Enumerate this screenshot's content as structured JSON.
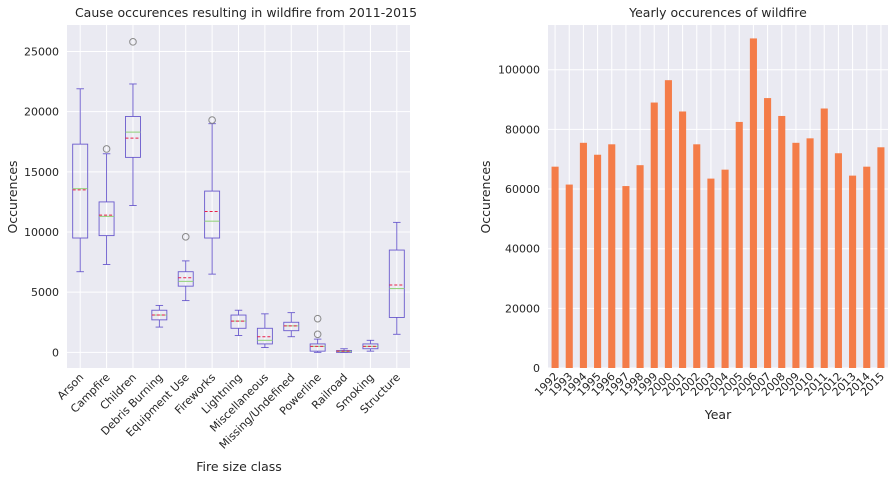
{
  "colors": {
    "plot_bg": "#eaeaf2",
    "grid": "#ffffff",
    "box_edge": "#6a5acd",
    "median": "#8fd175",
    "mean": "#e8204a",
    "bar": "#f47c48",
    "text": "#262626"
  },
  "chart_data": [
    {
      "type": "box",
      "title": "Cause occurences resulting in wildfire from 2011-2015",
      "xlabel": "Fire size class",
      "ylabel": "Occurences",
      "ylim": [
        -1300,
        27200
      ],
      "yticks": [
        0,
        5000,
        10000,
        15000,
        20000,
        25000
      ],
      "ytick_labels": [
        "0",
        "5000",
        "10000",
        "15000",
        "20000",
        "25000"
      ],
      "grid": true,
      "categories": [
        "Arson",
        "Campfire",
        "Children",
        "Debris Burning",
        "Equipment Use",
        "Fireworks",
        "Lightning",
        "Miscellaneous",
        "Missing/Undefined",
        "Powerline",
        "Railroad",
        "Smoking",
        "Structure"
      ],
      "boxes": [
        {
          "whislo": 6700,
          "q1": 9500,
          "med": 13600,
          "mean": 13500,
          "q3": 17300,
          "whishi": 21900,
          "fliers": []
        },
        {
          "whislo": 7300,
          "q1": 9700,
          "med": 11300,
          "mean": 11400,
          "q3": 12500,
          "whishi": 16500,
          "fliers": [
            16900
          ]
        },
        {
          "whislo": 12200,
          "q1": 16200,
          "med": 18300,
          "mean": 17800,
          "q3": 19600,
          "whishi": 22300,
          "fliers": [
            25800
          ]
        },
        {
          "whislo": 2100,
          "q1": 2700,
          "med": 3100,
          "mean": 3100,
          "q3": 3500,
          "whishi": 3900,
          "fliers": []
        },
        {
          "whislo": 4300,
          "q1": 5500,
          "med": 5900,
          "mean": 6200,
          "q3": 6700,
          "whishi": 7600,
          "fliers": [
            9600
          ]
        },
        {
          "whislo": 6500,
          "q1": 9500,
          "med": 10900,
          "mean": 11700,
          "q3": 13400,
          "whishi": 19000,
          "fliers": [
            19300
          ]
        },
        {
          "whislo": 1400,
          "q1": 2000,
          "med": 2600,
          "mean": 2600,
          "q3": 3100,
          "whishi": 3500,
          "fliers": []
        },
        {
          "whislo": 400,
          "q1": 700,
          "med": 1000,
          "mean": 1300,
          "q3": 2000,
          "whishi": 3200,
          "fliers": []
        },
        {
          "whislo": 1300,
          "q1": 1800,
          "med": 2200,
          "mean": 2200,
          "q3": 2500,
          "whishi": 3300,
          "fliers": []
        },
        {
          "whislo": 0,
          "q1": 100,
          "med": 500,
          "mean": 500,
          "q3": 700,
          "whishi": 1100,
          "fliers": [
            1500,
            2800
          ]
        },
        {
          "whislo": 0,
          "q1": 0,
          "med": 80,
          "mean": 100,
          "q3": 150,
          "whishi": 300,
          "fliers": []
        },
        {
          "whislo": 100,
          "q1": 300,
          "med": 500,
          "mean": 500,
          "q3": 700,
          "whishi": 1000,
          "fliers": []
        },
        {
          "whislo": 1500,
          "q1": 2900,
          "med": 5300,
          "mean": 5600,
          "q3": 8500,
          "whishi": 10800,
          "fliers": []
        }
      ]
    },
    {
      "type": "bar",
      "title": "Yearly occurences of wildfire",
      "xlabel": "Year",
      "ylabel": "Occurences",
      "ylim": [
        0,
        115000
      ],
      "yticks": [
        0,
        20000,
        40000,
        60000,
        80000,
        100000
      ],
      "ytick_labels": [
        "0",
        "20000",
        "40000",
        "60000",
        "80000",
        "100000"
      ],
      "grid": true,
      "categories": [
        "1992",
        "1993",
        "1994",
        "1995",
        "1996",
        "1997",
        "1998",
        "1999",
        "2000",
        "2001",
        "2002",
        "2003",
        "2004",
        "2005",
        "2006",
        "2007",
        "2008",
        "2009",
        "2010",
        "2011",
        "2012",
        "2013",
        "2014",
        "2015"
      ],
      "values": [
        67500,
        61500,
        75500,
        71500,
        75000,
        61000,
        68000,
        89000,
        96500,
        86000,
        75000,
        63500,
        66500,
        82500,
        110500,
        90500,
        84500,
        75500,
        77000,
        87000,
        72000,
        64500,
        67500,
        74000
      ]
    }
  ]
}
